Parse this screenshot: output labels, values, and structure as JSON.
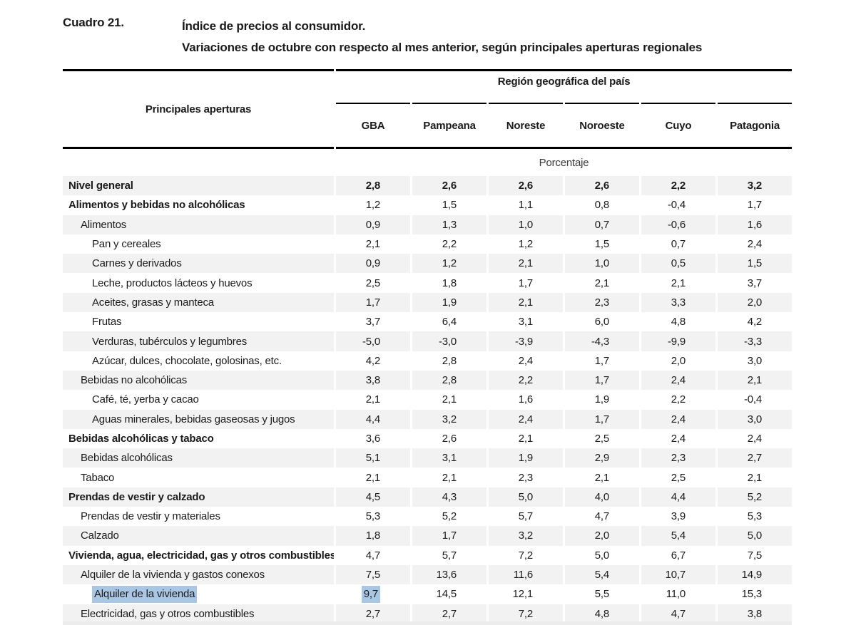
{
  "document": {
    "cuadro_label": "Cuadro 21.",
    "title_line1": "Índice de precios al consumidor.",
    "title_line2": "Variaciones de octubre con respecto al mes anterior, según principales aperturas regionales"
  },
  "table": {
    "stub_header": "Principales aperturas",
    "region_group_header": "Región geográfica del país",
    "columns": [
      "GBA",
      "Pampeana",
      "Noreste",
      "Noroeste",
      "Cuyo",
      "Patagonia"
    ],
    "unit_label": "Porcentaje",
    "highlight_color": "#a9c7e4",
    "rows": [
      {
        "label": "Nivel general",
        "level": 0,
        "bold": true,
        "values_bold": true,
        "shaded": true,
        "values": [
          "2,8",
          "2,6",
          "2,6",
          "2,6",
          "2,2",
          "3,2"
        ]
      },
      {
        "label": "Alimentos y bebidas no alcohólicas",
        "level": 0,
        "bold": true,
        "shaded": false,
        "values": [
          "1,2",
          "1,5",
          "1,1",
          "0,8",
          "-0,4",
          "1,7"
        ]
      },
      {
        "label": "Alimentos",
        "level": 1,
        "bold": false,
        "shaded": true,
        "values": [
          "0,9",
          "1,3",
          "1,0",
          "0,7",
          "-0,6",
          "1,6"
        ]
      },
      {
        "label": "Pan y cereales",
        "level": 2,
        "bold": false,
        "shaded": false,
        "values": [
          "2,1",
          "2,2",
          "1,2",
          "1,5",
          "0,7",
          "2,4"
        ]
      },
      {
        "label": "Carnes y derivados",
        "level": 2,
        "bold": false,
        "shaded": true,
        "values": [
          "0,9",
          "1,2",
          "2,1",
          "1,0",
          "0,5",
          "1,5"
        ]
      },
      {
        "label": "Leche, productos lácteos y huevos",
        "level": 2,
        "bold": false,
        "shaded": false,
        "values": [
          "2,5",
          "1,8",
          "1,7",
          "2,1",
          "2,1",
          "3,7"
        ]
      },
      {
        "label": "Aceites, grasas y manteca",
        "level": 2,
        "bold": false,
        "shaded": true,
        "values": [
          "1,7",
          "1,9",
          "2,1",
          "2,3",
          "3,3",
          "2,0"
        ]
      },
      {
        "label": "Frutas",
        "level": 2,
        "bold": false,
        "shaded": false,
        "values": [
          "3,7",
          "6,4",
          "3,1",
          "6,0",
          "4,8",
          "4,2"
        ]
      },
      {
        "label": "Verduras, tubérculos y legumbres",
        "level": 2,
        "bold": false,
        "shaded": true,
        "values": [
          "-5,0",
          "-3,0",
          "-3,9",
          "-4,3",
          "-9,9",
          "-3,3"
        ]
      },
      {
        "label": "Azúcar, dulces, chocolate, golosinas, etc.",
        "level": 2,
        "bold": false,
        "shaded": false,
        "values": [
          "4,2",
          "2,8",
          "2,4",
          "1,7",
          "2,0",
          "3,0"
        ]
      },
      {
        "label": "Bebidas no alcohólicas",
        "level": 1,
        "bold": false,
        "shaded": true,
        "values": [
          "3,8",
          "2,8",
          "2,2",
          "1,7",
          "2,4",
          "2,1"
        ]
      },
      {
        "label": "Café, té, yerba y cacao",
        "level": 2,
        "bold": false,
        "shaded": false,
        "values": [
          "2,1",
          "2,1",
          "1,6",
          "1,9",
          "2,2",
          "-0,4"
        ]
      },
      {
        "label": "Aguas minerales, bebidas gaseosas y jugos",
        "level": 2,
        "bold": false,
        "shaded": true,
        "values": [
          "4,4",
          "3,2",
          "2,4",
          "1,7",
          "2,4",
          "3,0"
        ]
      },
      {
        "label": "Bebidas alcohólicas y tabaco",
        "level": 0,
        "bold": true,
        "shaded": false,
        "values": [
          "3,6",
          "2,6",
          "2,1",
          "2,5",
          "2,4",
          "2,4"
        ]
      },
      {
        "label": "Bebidas alcohólicas",
        "level": 1,
        "bold": false,
        "shaded": true,
        "values": [
          "5,1",
          "3,1",
          "1,9",
          "2,9",
          "2,3",
          "2,7"
        ]
      },
      {
        "label": "Tabaco",
        "level": 1,
        "bold": false,
        "shaded": false,
        "values": [
          "2,1",
          "2,1",
          "2,3",
          "2,1",
          "2,5",
          "2,1"
        ]
      },
      {
        "label": "Prendas de vestir y calzado",
        "level": 0,
        "bold": true,
        "shaded": true,
        "values": [
          "4,5",
          "4,3",
          "5,0",
          "4,0",
          "4,4",
          "5,2"
        ]
      },
      {
        "label": "Prendas de vestir y materiales",
        "level": 1,
        "bold": false,
        "shaded": false,
        "values": [
          "5,3",
          "5,2",
          "5,7",
          "4,7",
          "3,9",
          "5,3"
        ]
      },
      {
        "label": "Calzado",
        "level": 1,
        "bold": false,
        "shaded": true,
        "values": [
          "1,8",
          "1,7",
          "3,2",
          "2,0",
          "5,4",
          "5,0"
        ]
      },
      {
        "label": "Vivienda, agua, electricidad, gas y otros combustibles",
        "level": 0,
        "bold": true,
        "shaded": false,
        "values": [
          "4,7",
          "5,7",
          "7,2",
          "5,0",
          "6,7",
          "7,5"
        ]
      },
      {
        "label": "Alquiler de la vivienda y gastos conexos",
        "level": 1,
        "bold": false,
        "shaded": true,
        "values": [
          "7,5",
          "13,6",
          "11,6",
          "5,4",
          "10,7",
          "14,9"
        ]
      },
      {
        "label": "Alquiler de la vivienda",
        "level": 2,
        "bold": false,
        "shaded": false,
        "highlight_label": true,
        "highlight_cells": [
          0
        ],
        "values": [
          "9,7",
          "14,5",
          "12,1",
          "5,5",
          "11,0",
          "15,3"
        ]
      },
      {
        "label": "Electricidad, gas y otros combustibles",
        "level": 1,
        "bold": false,
        "shaded": true,
        "values": [
          "2,7",
          "2,7",
          "7,2",
          "4,8",
          "4,7",
          "3,8"
        ]
      }
    ]
  }
}
